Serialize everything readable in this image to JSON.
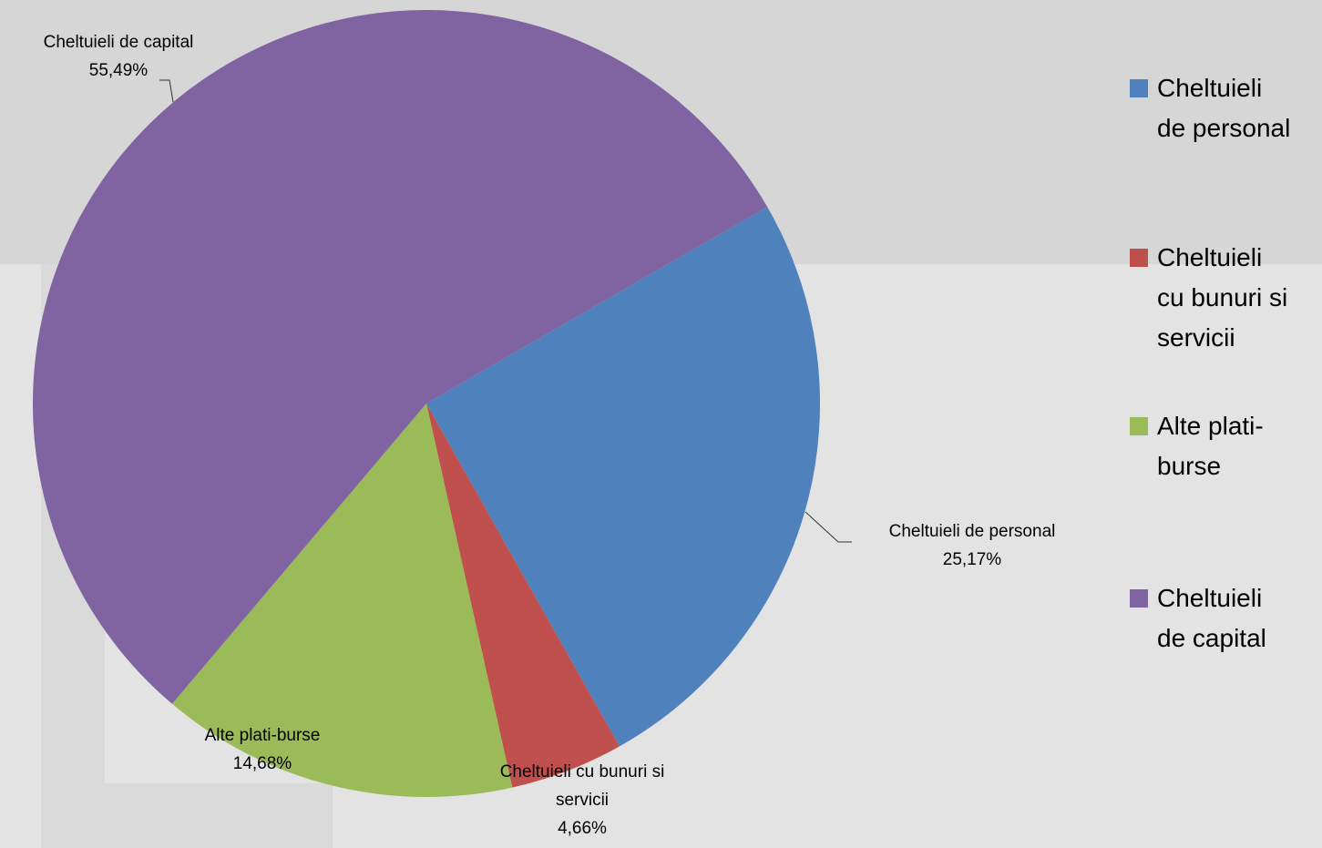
{
  "chart_data": {
    "type": "pie",
    "categories": [
      "Cheltuieli de personal",
      "Cheltuieli cu bunuri si servicii",
      "Alte plati-burse",
      "Cheltuieli de capital"
    ],
    "values": [
      25.17,
      4.66,
      14.68,
      55.49
    ],
    "value_labels": [
      "25,17%",
      "4,66%",
      "14,68%",
      "55,49%"
    ],
    "colors": [
      "#4f81bd",
      "#c0504d",
      "#9bbb59",
      "#8064a2"
    ],
    "legend": "right"
  }
}
